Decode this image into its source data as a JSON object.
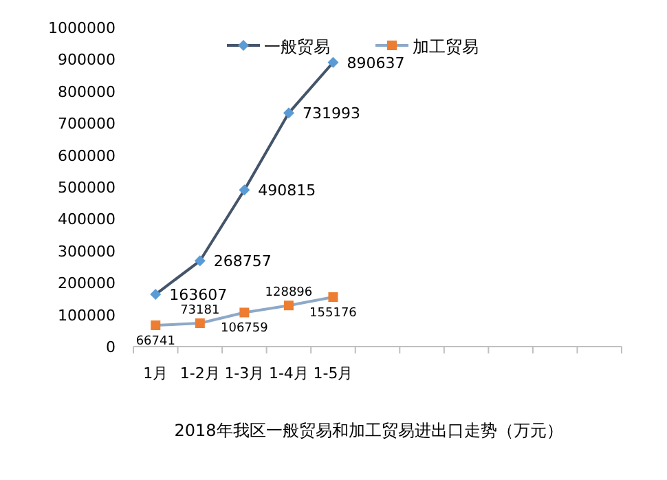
{
  "chart_data": {
    "type": "line",
    "title": "2018年我区一般贸易和加工贸易进出口走势（万元）",
    "categories": [
      "1月",
      "1-2月",
      "1-3月",
      "1-4月",
      "1-5月",
      null,
      null,
      null,
      null,
      null,
      null
    ],
    "series": [
      {
        "name": "一般贸易",
        "color": "#5b9bd5",
        "marker": "diamond",
        "values": [
          163607,
          268757,
          490815,
          731993,
          890637,
          null,
          null,
          null,
          null,
          null,
          null
        ]
      },
      {
        "name": "加工贸易",
        "color": "#ed7d31",
        "marker": "square",
        "values": [
          66741,
          73181,
          106759,
          128896,
          155176,
          null,
          null,
          null,
          null,
          null,
          null
        ]
      }
    ],
    "ylim": [
      0,
      1000000
    ],
    "yticks": [
      0,
      100000,
      200000,
      300000,
      400000,
      500000,
      600000,
      700000,
      800000,
      900000,
      1000000
    ],
    "data_labels": true,
    "legend": "top",
    "grid": false
  }
}
